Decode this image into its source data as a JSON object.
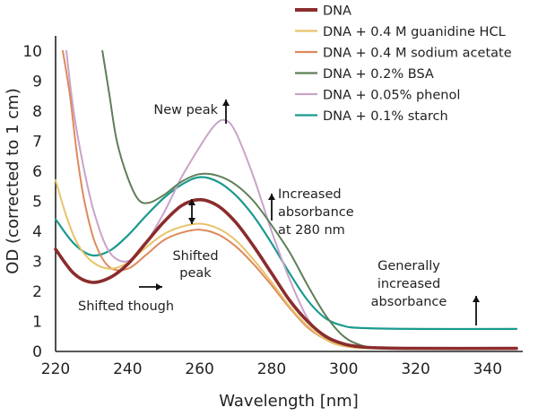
{
  "chart_data": {
    "type": "line",
    "title": "",
    "xlabel": "Wavelength [nm]",
    "ylabel": "OD (corrected to 1 cm)",
    "xlim": [
      220,
      348
    ],
    "ylim": [
      0,
      10.5
    ],
    "grid": false,
    "legend_position": "top-right",
    "x_ticks": [
      220,
      240,
      260,
      280,
      300,
      320,
      340
    ],
    "y_ticks": [
      0,
      1,
      2,
      3,
      4,
      5,
      6,
      7,
      8,
      9,
      10
    ],
    "series": [
      {
        "name": "DNA",
        "color": "#8b2c2c",
        "width": 3.6,
        "points": [
          [
            220,
            3.4
          ],
          [
            225,
            2.6
          ],
          [
            230,
            2.3
          ],
          [
            235,
            2.45
          ],
          [
            240,
            2.9
          ],
          [
            245,
            3.6
          ],
          [
            250,
            4.3
          ],
          [
            255,
            4.85
          ],
          [
            260,
            5.05
          ],
          [
            265,
            4.85
          ],
          [
            270,
            4.3
          ],
          [
            275,
            3.5
          ],
          [
            280,
            2.6
          ],
          [
            285,
            1.7
          ],
          [
            290,
            1.0
          ],
          [
            295,
            0.5
          ],
          [
            300,
            0.25
          ],
          [
            305,
            0.15
          ],
          [
            310,
            0.12
          ],
          [
            320,
            0.1
          ],
          [
            348,
            0.1
          ]
        ]
      },
      {
        "name": "DNA + 0.4 M guanidine HCL",
        "color": "#e8c36a",
        "width": 2,
        "points": [
          [
            220,
            5.7
          ],
          [
            223,
            4.5
          ],
          [
            226,
            3.6
          ],
          [
            230,
            3.0
          ],
          [
            235,
            2.75
          ],
          [
            240,
            2.95
          ],
          [
            245,
            3.45
          ],
          [
            250,
            3.9
          ],
          [
            255,
            4.15
          ],
          [
            260,
            4.25
          ],
          [
            265,
            4.1
          ],
          [
            270,
            3.7
          ],
          [
            275,
            3.05
          ],
          [
            280,
            2.3
          ],
          [
            285,
            1.5
          ],
          [
            290,
            0.85
          ],
          [
            295,
            0.4
          ],
          [
            300,
            0.18
          ],
          [
            310,
            0.1
          ],
          [
            348,
            0.08
          ]
        ]
      },
      {
        "name": "DNA + 0.4 M sodium acetate",
        "color": "#dd8a5c",
        "width": 2,
        "points": [
          [
            222,
            10
          ],
          [
            224,
            8.5
          ],
          [
            226,
            6.5
          ],
          [
            228,
            5.0
          ],
          [
            231,
            3.6
          ],
          [
            235,
            2.8
          ],
          [
            240,
            2.75
          ],
          [
            245,
            3.2
          ],
          [
            250,
            3.7
          ],
          [
            255,
            3.95
          ],
          [
            260,
            4.05
          ],
          [
            265,
            3.9
          ],
          [
            270,
            3.5
          ],
          [
            275,
            2.9
          ],
          [
            280,
            2.2
          ],
          [
            285,
            1.45
          ],
          [
            290,
            0.8
          ],
          [
            295,
            0.4
          ],
          [
            300,
            0.18
          ],
          [
            310,
            0.1
          ],
          [
            348,
            0.08
          ]
        ]
      },
      {
        "name": "DNA + 0.2% BSA",
        "color": "#5e7f56",
        "width": 2,
        "points": [
          [
            233,
            10
          ],
          [
            235,
            8.5
          ],
          [
            237,
            7.0
          ],
          [
            240,
            5.8
          ],
          [
            243,
            5.05
          ],
          [
            246,
            4.95
          ],
          [
            250,
            5.2
          ],
          [
            255,
            5.65
          ],
          [
            260,
            5.9
          ],
          [
            265,
            5.85
          ],
          [
            270,
            5.55
          ],
          [
            275,
            5.0
          ],
          [
            280,
            4.2
          ],
          [
            285,
            3.3
          ],
          [
            290,
            2.2
          ],
          [
            295,
            1.2
          ],
          [
            300,
            0.5
          ],
          [
            305,
            0.2
          ],
          [
            310,
            0.12
          ],
          [
            320,
            0.1
          ],
          [
            348,
            0.1
          ]
        ]
      },
      {
        "name": "DNA + 0.05% phenol",
        "color": "#c9a3c9",
        "width": 2,
        "points": [
          [
            223,
            10
          ],
          [
            225,
            8.0
          ],
          [
            228,
            6.0
          ],
          [
            231,
            4.5
          ],
          [
            235,
            3.3
          ],
          [
            240,
            3.0
          ],
          [
            245,
            3.6
          ],
          [
            250,
            4.6
          ],
          [
            255,
            5.8
          ],
          [
            260,
            6.8
          ],
          [
            264,
            7.5
          ],
          [
            267,
            7.7
          ],
          [
            270,
            7.3
          ],
          [
            275,
            5.8
          ],
          [
            280,
            4.0
          ],
          [
            285,
            2.4
          ],
          [
            290,
            1.1
          ],
          [
            295,
            0.45
          ],
          [
            300,
            0.2
          ],
          [
            310,
            0.1
          ],
          [
            348,
            0.1
          ]
        ]
      },
      {
        "name": "DNA + 0.1% starch",
        "color": "#1a9a8e",
        "width": 2.2,
        "points": [
          [
            220,
            4.4
          ],
          [
            225,
            3.6
          ],
          [
            230,
            3.2
          ],
          [
            235,
            3.35
          ],
          [
            240,
            3.85
          ],
          [
            245,
            4.5
          ],
          [
            250,
            5.1
          ],
          [
            255,
            5.55
          ],
          [
            260,
            5.8
          ],
          [
            265,
            5.65
          ],
          [
            270,
            5.2
          ],
          [
            275,
            4.5
          ],
          [
            280,
            3.6
          ],
          [
            285,
            2.6
          ],
          [
            290,
            1.7
          ],
          [
            295,
            1.1
          ],
          [
            300,
            0.85
          ],
          [
            305,
            0.78
          ],
          [
            320,
            0.75
          ],
          [
            348,
            0.75
          ]
        ]
      }
    ],
    "annotations": [
      {
        "name": "new-peak",
        "lines": [
          "New peak"
        ],
        "arrow": "up"
      },
      {
        "name": "increased-280",
        "lines": [
          "Increased",
          "absorbance",
          "at 280 nm"
        ],
        "arrow": "up"
      },
      {
        "name": "shifted-peak",
        "lines": [
          "Shifted",
          "peak"
        ],
        "arrow": "updown"
      },
      {
        "name": "shifted-trough",
        "lines": [
          "Shifted though"
        ],
        "arrow": "right"
      },
      {
        "name": "generally-increased",
        "lines": [
          "Generally",
          "increased",
          "absorbance"
        ],
        "arrow": "up"
      }
    ]
  }
}
